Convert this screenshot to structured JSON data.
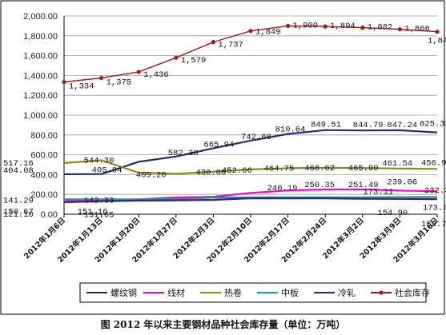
{
  "caption": "图  2012 年以来主要钢材品种社会库存量（单位：万吨）",
  "chart_data": {
    "type": "line",
    "categories": [
      "2012年1月6日",
      "2012年1月13日",
      "2012年1月20日",
      "2012年1月27日",
      "2012年2月3日",
      "2012年2月10日",
      "2012年2月17日",
      "2012年2月24日",
      "2012年3月2日",
      "2012年3月9日",
      "2012年3月16日"
    ],
    "ylim": [
      0,
      2000
    ],
    "yticks": [
      "0.00",
      "200.00",
      "400.00",
      "600.00",
      "800.00",
      "1,000.00",
      "1,200.00",
      "1,400.00",
      "1,600.00",
      "1,800.00",
      "2,000.00"
    ],
    "grid": true,
    "legend_position": "bottom",
    "series": [
      {
        "name": "螺纹钢",
        "color": "#1f2d6e",
        "values": [
          404.08,
          405.84,
          530,
          582.38,
          665.94,
          742.68,
          810.64,
          849.51,
          844.79,
          847.24,
          825.33
        ],
        "labels": [
          "404.08",
          "405.84",
          "",
          "582.38",
          "665.94",
          "742.68",
          "810.64",
          "849.51",
          "844.79",
          "847.24",
          "825.33"
        ]
      },
      {
        "name": "线材",
        "color": "#ff00cc",
        "values": [
          141.29,
          142.33,
          150,
          170,
          177,
          215,
          240.19,
          250.35,
          251.49,
          239.06,
          232.32
        ],
        "labels": [
          "141.29",
          "142.33",
          "",
          "",
          "",
          "",
          "240.19",
          "250.35",
          "251.49",
          "239.06",
          "232.32"
        ]
      },
      {
        "name": "热卷",
        "color": "#8b8b1c",
        "values": [
          517.16,
          544.3,
          420,
          409.2,
          430,
          452.66,
          464.75,
          468.62,
          465.9,
          461.54,
          456.94
        ],
        "labels": [
          "517.16",
          "544.30",
          "",
          "409.20",
          "430.00",
          "452.66",
          "464.75",
          "468.62",
          "465.90",
          "461.54",
          "456.94"
        ]
      },
      {
        "name": "中板",
        "color": "#129b9b",
        "values": [
          150.67,
          151.16,
          150,
          155,
          168,
          170,
          172,
          172,
          170,
          173.11,
          173.8
        ],
        "labels": [
          "150.67",
          "151.16",
          "",
          "",
          "",
          "",
          "",
          "",
          "",
          "173.11",
          "173.80"
        ]
      },
      {
        "name": "冷轧",
        "color": "#4b1a7a",
        "values": [
          121.1,
          131.65,
          138,
          140,
          145,
          160.9,
          160.5,
          160.3,
          155.5,
          154.9,
          152.7
        ],
        "labels": [
          "121.10",
          "131.65",
          "",
          "",
          "",
          "",
          "",
          "",
          "",
          "154.90",
          "152.70"
        ]
      },
      {
        "name": "社会库存",
        "color": "#a01818",
        "values": [
          1334,
          1375,
          1436,
          1579,
          1737,
          1849,
          1900,
          1894,
          1882,
          1866,
          1841
        ],
        "labels": [
          "1,334",
          "1,375",
          "1,436",
          "1,579",
          "1,737",
          "1,849",
          "1,900",
          "1,894",
          "1,882",
          "1,866",
          "1,841"
        ]
      }
    ]
  }
}
